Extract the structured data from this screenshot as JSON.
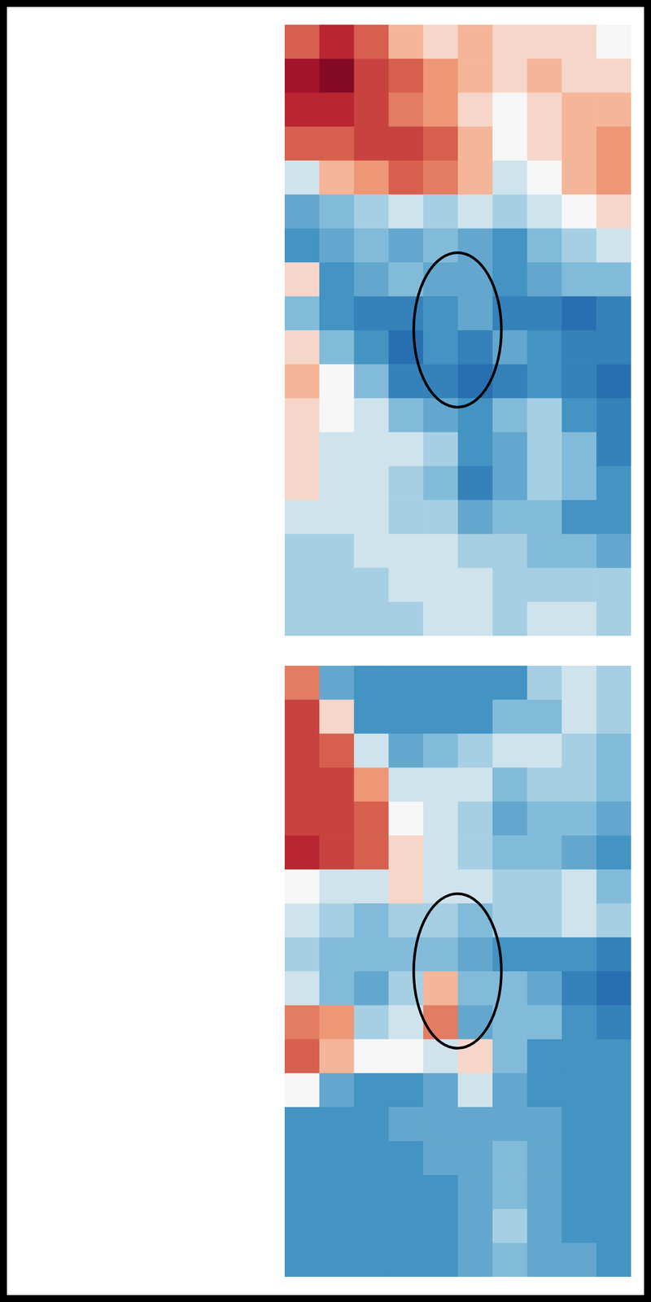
{
  "chart_data": [
    {
      "type": "heatmap",
      "xlim": [
        0,
        10
      ],
      "ylim": [
        0,
        18
      ],
      "zlim": [
        -1,
        1
      ],
      "tick_labels": false,
      "cells": [
        [
          0.5,
          0.7,
          0.5,
          0.2,
          0.1,
          0.2,
          0.1,
          0.1,
          0.1,
          0.0
        ],
        [
          0.8,
          0.9,
          0.6,
          0.5,
          0.3,
          0.2,
          0.1,
          0.2,
          0.1,
          0.1
        ],
        [
          0.7,
          0.7,
          0.6,
          0.4,
          0.3,
          0.1,
          0.0,
          0.1,
          0.2,
          0.2
        ],
        [
          0.5,
          0.5,
          0.6,
          0.6,
          0.5,
          0.2,
          0.0,
          0.1,
          0.2,
          0.3
        ],
        [
          -0.1,
          0.2,
          0.3,
          0.5,
          0.4,
          0.2,
          -0.1,
          0.0,
          0.2,
          0.3
        ],
        [
          -0.4,
          -0.3,
          -0.2,
          -0.1,
          -0.2,
          -0.1,
          -0.2,
          -0.1,
          0.0,
          0.1
        ],
        [
          -0.5,
          -0.4,
          -0.3,
          -0.4,
          -0.3,
          -0.4,
          -0.5,
          -0.3,
          -0.2,
          -0.1
        ],
        [
          0.1,
          -0.5,
          -0.4,
          -0.3,
          -0.4,
          -0.4,
          -0.5,
          -0.4,
          -0.3,
          -0.3
        ],
        [
          -0.3,
          -0.5,
          -0.6,
          -0.6,
          -0.5,
          -0.4,
          -0.6,
          -0.6,
          -0.7,
          -0.6
        ],
        [
          0.1,
          -0.3,
          -0.5,
          -0.7,
          -0.5,
          -0.6,
          -0.4,
          -0.5,
          -0.6,
          -0.6
        ],
        [
          0.2,
          0.0,
          -0.3,
          -0.6,
          -0.6,
          -0.7,
          -0.6,
          -0.5,
          -0.6,
          -0.7
        ],
        [
          0.1,
          0.0,
          -0.1,
          -0.3,
          -0.4,
          -0.5,
          -0.3,
          -0.2,
          -0.5,
          -0.6
        ],
        [
          0.1,
          -0.1,
          -0.1,
          -0.1,
          -0.2,
          -0.5,
          -0.4,
          -0.2,
          -0.3,
          -0.6
        ],
        [
          0.1,
          -0.1,
          -0.1,
          -0.2,
          -0.3,
          -0.6,
          -0.4,
          -0.2,
          -0.3,
          -0.5
        ],
        [
          -0.1,
          -0.1,
          -0.1,
          -0.2,
          -0.2,
          -0.4,
          -0.3,
          -0.3,
          -0.5,
          -0.5
        ],
        [
          -0.2,
          -0.2,
          -0.1,
          -0.1,
          -0.1,
          -0.2,
          -0.2,
          -0.3,
          -0.3,
          -0.4
        ],
        [
          -0.2,
          -0.2,
          -0.2,
          -0.1,
          -0.1,
          -0.1,
          -0.2,
          -0.2,
          -0.2,
          -0.2
        ],
        [
          -0.2,
          -0.2,
          -0.2,
          -0.2,
          -0.1,
          -0.1,
          -0.2,
          -0.1,
          -0.1,
          -0.2
        ]
      ]
    },
    {
      "type": "heatmap",
      "xlim": [
        0,
        10
      ],
      "ylim": [
        0,
        18
      ],
      "zlim": [
        -1,
        1
      ],
      "tick_labels": false,
      "cells": [
        [
          0.4,
          -0.4,
          -0.5,
          -0.5,
          -0.5,
          -0.5,
          -0.5,
          -0.2,
          -0.1,
          -0.2
        ],
        [
          0.6,
          0.1,
          -0.5,
          -0.5,
          -0.5,
          -0.5,
          -0.3,
          -0.3,
          -0.1,
          -0.2
        ],
        [
          0.6,
          0.5,
          -0.1,
          -0.4,
          -0.3,
          -0.2,
          -0.1,
          -0.1,
          -0.2,
          -0.3
        ],
        [
          0.6,
          0.6,
          0.3,
          -0.1,
          -0.1,
          -0.1,
          -0.3,
          -0.2,
          -0.2,
          -0.3
        ],
        [
          0.6,
          0.6,
          0.5,
          0.0,
          -0.1,
          -0.2,
          -0.4,
          -0.3,
          -0.3,
          -0.4
        ],
        [
          0.7,
          0.6,
          0.5,
          0.1,
          -0.1,
          -0.2,
          -0.3,
          -0.3,
          -0.4,
          -0.5
        ],
        [
          0.0,
          -0.1,
          -0.1,
          0.1,
          -0.1,
          -0.1,
          -0.2,
          -0.2,
          -0.1,
          -0.3
        ],
        [
          -0.1,
          -0.2,
          -0.3,
          -0.2,
          -0.2,
          -0.3,
          -0.2,
          -0.2,
          -0.1,
          -0.2
        ],
        [
          -0.2,
          -0.3,
          -0.3,
          -0.3,
          -0.3,
          -0.4,
          -0.5,
          -0.5,
          -0.5,
          -0.6
        ],
        [
          -0.1,
          -0.3,
          -0.4,
          -0.2,
          0.2,
          -0.3,
          -0.3,
          -0.4,
          -0.6,
          -0.7
        ],
        [
          0.4,
          0.3,
          -0.2,
          -0.1,
          0.4,
          -0.4,
          -0.3,
          -0.3,
          -0.5,
          -0.6
        ],
        [
          0.5,
          0.2,
          0.0,
          0.0,
          -0.1,
          0.1,
          -0.3,
          -0.5,
          -0.5,
          -0.5
        ],
        [
          0.0,
          -0.4,
          -0.5,
          -0.5,
          -0.4,
          -0.1,
          -0.4,
          -0.5,
          -0.5,
          -0.5
        ],
        [
          -0.5,
          -0.5,
          -0.5,
          -0.4,
          -0.4,
          -0.4,
          -0.4,
          -0.4,
          -0.5,
          -0.5
        ],
        [
          -0.5,
          -0.5,
          -0.5,
          -0.5,
          -0.4,
          -0.4,
          -0.3,
          -0.4,
          -0.5,
          -0.5
        ],
        [
          -0.5,
          -0.5,
          -0.5,
          -0.5,
          -0.5,
          -0.4,
          -0.3,
          -0.4,
          -0.5,
          -0.5
        ],
        [
          -0.5,
          -0.5,
          -0.5,
          -0.5,
          -0.5,
          -0.4,
          -0.2,
          -0.4,
          -0.5,
          -0.5
        ],
        [
          -0.5,
          -0.5,
          -0.5,
          -0.5,
          -0.5,
          -0.4,
          -0.3,
          -0.4,
          -0.4,
          -0.5
        ]
      ]
    }
  ]
}
